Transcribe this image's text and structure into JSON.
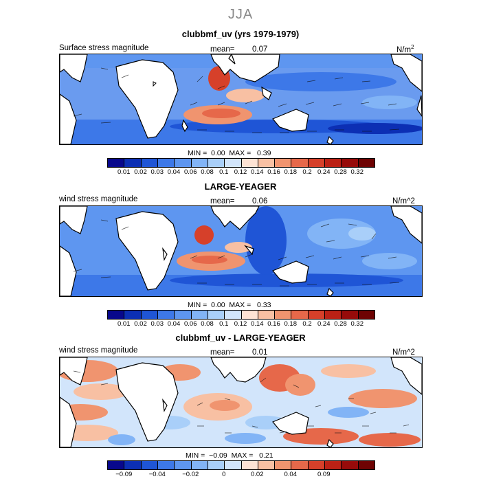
{
  "season": "JJA",
  "palettes": {
    "stress": [
      "#08088c",
      "#0c2fb4",
      "#1f55d6",
      "#3d78e8",
      "#5e96f0",
      "#82b4f6",
      "#a9cff9",
      "#d2e5fb",
      "#fde3d4",
      "#f8c0a3",
      "#f0946f",
      "#e6684a",
      "#d6402a",
      "#bb2115",
      "#970b0a",
      "#6e0303"
    ],
    "diff": [
      "#08088c",
      "#0c2fb4",
      "#1f55d6",
      "#3d78e8",
      "#5e96f0",
      "#82b4f6",
      "#a9cff9",
      "#d2e5fb",
      "#fde3d4",
      "#f8c0a3",
      "#f0946f",
      "#e6684a",
      "#d6402a",
      "#bb2115",
      "#970b0a",
      "#6e0303"
    ]
  },
  "panels": [
    {
      "title": "clubbmf_uv (yrs 1979-1979)",
      "left_label": "Surface stress magnitude",
      "mean_label": "mean=",
      "mean_value": "0.07",
      "unit_base": "N/m",
      "unit_sup": "2",
      "minmax": {
        "min_label": "MIN =",
        "min": "0.00",
        "max_label": "MAX =",
        "max": "0.39"
      },
      "colorbar": {
        "palette": "stress",
        "ticks": [
          "0.01",
          "0.02",
          "0.03",
          "0.04",
          "0.06",
          "0.08",
          "0.1",
          "0.12",
          "0.14",
          "0.16",
          "0.18",
          "0.2",
          "0.24",
          "0.28",
          "0.32"
        ]
      }
    },
    {
      "title": "LARGE-YEAGER",
      "left_label": "wind stress magnitude",
      "mean_label": "mean=",
      "mean_value": "0.06",
      "unit_base": "N/m^2",
      "unit_sup": "",
      "minmax": {
        "min_label": "MIN =",
        "min": "0.00",
        "max_label": "MAX =",
        "max": "0.33"
      },
      "colorbar": {
        "palette": "stress",
        "ticks": [
          "0.01",
          "0.02",
          "0.03",
          "0.04",
          "0.06",
          "0.08",
          "0.1",
          "0.12",
          "0.14",
          "0.16",
          "0.18",
          "0.2",
          "0.24",
          "0.28",
          "0.32"
        ]
      }
    },
    {
      "title": "clubbmf_uv - LARGE-YEAGER",
      "left_label": "wind stress magnitude",
      "mean_label": "mean=",
      "mean_value": "0.01",
      "unit_base": "N/m^2",
      "unit_sup": "",
      "minmax": {
        "min_label": "MIN =",
        "min": "−0.09",
        "max_label": "MAX =",
        "max": "0.21"
      },
      "colorbar": {
        "palette": "diff",
        "ticks": [
          "−0.09",
          "−0.04",
          "−0.02",
          "0",
          "0.02",
          "0.04",
          "0.09"
        ]
      }
    }
  ]
}
